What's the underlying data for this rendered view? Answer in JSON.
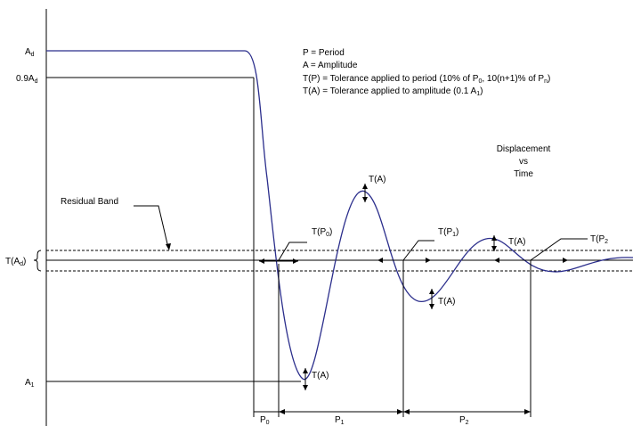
{
  "labels": {
    "a_d": "A",
    "a_d_sub": "d",
    "a_09": "0.9A",
    "a_09_sub": "d",
    "a_1": "A",
    "a_1_sub": "1",
    "t_ad_prefix": "T(A",
    "t_ad_sub": "d",
    "t_ad_suffix": ")",
    "residual_band": "Residual Band",
    "tp0_prefix": "T(P",
    "tp0_sub": "0",
    "tp0_suffix": ")",
    "tp1_prefix": "T(P",
    "tp1_sub": "1",
    "tp1_suffix": ")",
    "tp2_prefix": "T(P",
    "tp2_sub": "2",
    "ta": "T(A)",
    "p0": "P",
    "p0_sub": "0",
    "p1": "P",
    "p1_sub": "1",
    "p2": "P",
    "p2_sub": "2"
  },
  "legend": {
    "line1": "P = Period",
    "line2": "A = Amplitude",
    "line3_a": "T(P) = Tolerance applied to period (10% of P",
    "line3_sub_a": "0",
    "line3_b": ", 10(n+1)% of P",
    "line3_sub_b": "n",
    "line3_c": ")",
    "line4_a": "T(A) = Tolerance applied to amplitude  (0.1 A",
    "line4_sub": "1",
    "line4_b": ")"
  },
  "title": {
    "line1": "Displacement",
    "line2": "vs",
    "line3": "Time"
  },
  "colors": {
    "curve": "#2b2e8c",
    "lines": "#000000"
  }
}
